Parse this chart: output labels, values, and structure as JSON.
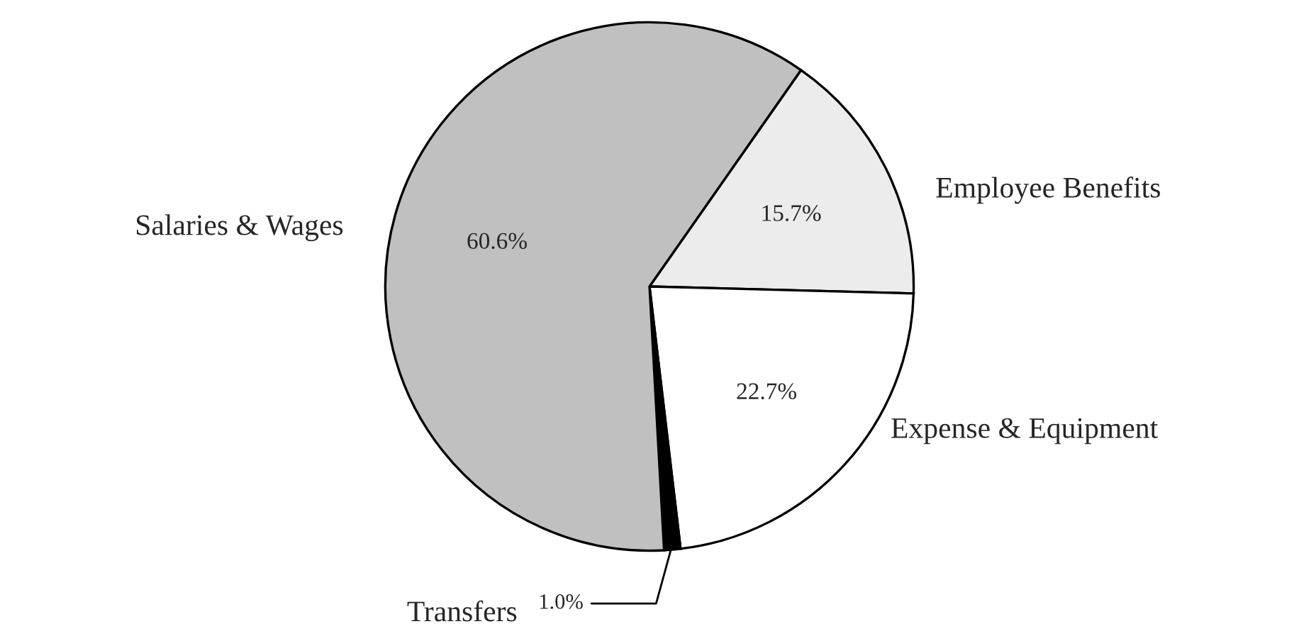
{
  "chart_data": {
    "type": "pie",
    "categories": [
      "Employee Benefits",
      "Expense & Equipment",
      "Transfers",
      "Salaries & Wages"
    ],
    "values": [
      15.7,
      22.7,
      1.0,
      60.6
    ],
    "value_labels": [
      "15.7%",
      "22.7%",
      "1.0%",
      "60.6%"
    ],
    "colors": [
      "#ececec",
      "#ffffff",
      "#000000",
      "#c0c0c0"
    ]
  }
}
